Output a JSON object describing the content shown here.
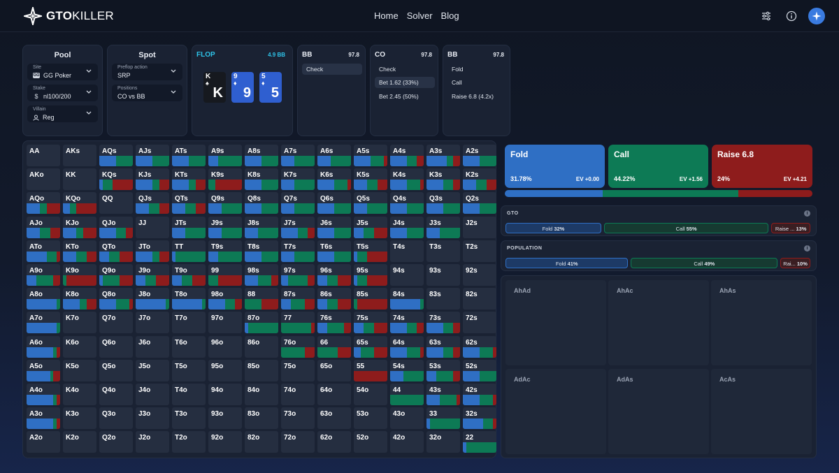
{
  "nav": {
    "brand_a": "GTO",
    "brand_b": "KILLER",
    "links": [
      "Home",
      "Solver",
      "Blog"
    ]
  },
  "pool": {
    "title": "Pool",
    "site_label": "Site",
    "site_value": "GG Poker",
    "stake_label": "Stake",
    "stake_value": "nl100/200",
    "villain_label": "Villain",
    "villain_value": "Reg"
  },
  "spot": {
    "title": "Spot",
    "preflop_label": "Preflop action",
    "preflop_value": "SRP",
    "positions_label": "Positions",
    "positions_value": "CO vs BB"
  },
  "board": {
    "street": "FLOP",
    "pot": "4.9 BB",
    "cards": [
      {
        "rank": "K",
        "suit": "♠",
        "color": "#16191f"
      },
      {
        "rank": "9",
        "suit": "♦",
        "color": "#2f5fd0"
      },
      {
        "rank": "5",
        "suit": "♦",
        "color": "#2f5fd0"
      }
    ]
  },
  "history": [
    {
      "pos": "BB",
      "stack": "97.8",
      "actions": [
        "Check"
      ],
      "selected": 0
    },
    {
      "pos": "CO",
      "stack": "97.8",
      "actions": [
        "Check",
        "Bet 1.62 (33%)",
        "Bet 2.45 (50%)"
      ],
      "selected": 1
    },
    {
      "pos": "BB",
      "stack": "97.8",
      "actions": [
        "Fold",
        "Call",
        "Raise 6.8 (4.2x)"
      ],
      "selected": -1
    }
  ],
  "summary": [
    {
      "name": "Fold",
      "pct": "31.78%",
      "ev": "EV +0.00",
      "color": "#2f6fc4",
      "frac": 0.3178
    },
    {
      "name": "Call",
      "pct": "44.22%",
      "ev": "EV +1.56",
      "color": "#0d7a55",
      "frac": 0.4422
    },
    {
      "name": "Raise 6.8",
      "pct": "24%",
      "ev": "EV +4.21",
      "color": "#8e1c1c",
      "frac": 0.24
    }
  ],
  "gto": {
    "title": "GTO",
    "info": "i",
    "items": [
      {
        "label": "Fold",
        "pct": "32%",
        "frac": 0.32
      },
      {
        "label": "Call",
        "pct": "55%",
        "frac": 0.55
      },
      {
        "label": "Raise ...",
        "pct": "13%",
        "frac": 0.13
      }
    ]
  },
  "population": {
    "title": "POPULATION",
    "info": "i",
    "items": [
      {
        "label": "Fold",
        "pct": "41%",
        "frac": 0.41
      },
      {
        "label": "Call",
        "pct": "49%",
        "frac": 0.49
      },
      {
        "label": "Rai...",
        "pct": "10%",
        "frac": 0.1
      }
    ]
  },
  "combos": [
    "AhAd",
    "AhAc",
    "AhAs",
    "AdAc",
    "AdAs",
    "AcAs"
  ],
  "colors": {
    "fold": "#2f6fc4",
    "call": "#0d7a55",
    "raise": "#8e1c1c"
  },
  "range": {
    "ranks": [
      "A",
      "K",
      "Q",
      "J",
      "T",
      "9",
      "8",
      "7",
      "6",
      "5",
      "4",
      "3",
      "2"
    ],
    "rows": [
      [
        [],
        [],
        [
          0.5,
          0.5,
          0
        ],
        [
          0.5,
          0.5,
          0
        ],
        [
          0.5,
          0.5,
          0
        ],
        [
          0.3,
          0.7,
          0
        ],
        [
          0.5,
          0.5,
          0
        ],
        [
          0.4,
          0.6,
          0
        ],
        [
          0.4,
          0.6,
          0
        ],
        [
          0.5,
          0.4,
          0.1
        ],
        [
          0.5,
          0.3,
          0.2
        ],
        [
          0.6,
          0.2,
          0.2
        ],
        [
          0.5,
          0.5,
          0
        ]
      ],
      [
        [],
        [],
        [
          0.1,
          0.3,
          0.6
        ],
        [
          0.5,
          0.2,
          0.3
        ],
        [
          0.5,
          0.2,
          0.3
        ],
        [
          0,
          0.2,
          0.8
        ],
        [
          0.5,
          0.5,
          0
        ],
        [
          0.4,
          0.6,
          0
        ],
        [
          0.5,
          0.4,
          0.1
        ],
        [
          0.4,
          0.3,
          0.3
        ],
        [
          0.5,
          0.4,
          0.1
        ],
        [
          0.5,
          0.3,
          0.2
        ],
        [
          0.4,
          0.3,
          0.3
        ]
      ],
      [
        [
          0.4,
          0.2,
          0.4
        ],
        [
          0.2,
          0.2,
          0.6
        ],
        [],
        [
          0.4,
          0.3,
          0.3
        ],
        [
          0.4,
          0.3,
          0.3
        ],
        [
          0.4,
          0.6,
          0
        ],
        [
          0.5,
          0.5,
          0
        ],
        [
          0.4,
          0.6,
          0
        ],
        [
          0.5,
          0.5,
          0
        ],
        [
          0.4,
          0.6,
          0
        ],
        [
          0.5,
          0.5,
          0
        ],
        [
          0.5,
          0.5,
          0
        ],
        [
          0.5,
          0.5,
          0
        ]
      ],
      [
        [
          0.4,
          0.3,
          0.3
        ],
        [
          0.4,
          0.2,
          0.4
        ],
        [
          0.5,
          0.3,
          0.2
        ],
        [],
        [
          0.4,
          0.6,
          0
        ],
        [
          0.4,
          0.6,
          0
        ],
        [
          0.4,
          0.6,
          0
        ],
        [
          0.5,
          0.3,
          0.2
        ],
        [
          0.5,
          0.5,
          0
        ],
        [
          0.3,
          0.3,
          0.4
        ],
        [
          0.5,
          0.5,
          0
        ],
        [
          0.4,
          0.6,
          0
        ],
        []
      ],
      [
        [
          0.6,
          0.3,
          0.1
        ],
        [
          0.4,
          0.3,
          0.3
        ],
        [
          0.3,
          0.3,
          0.4
        ],
        [
          0.5,
          0.2,
          0.3
        ],
        [
          0.1,
          0.9,
          0
        ],
        [
          0.3,
          0.7,
          0
        ],
        [
          0.5,
          0.5,
          0
        ],
        [
          0.4,
          0.6,
          0
        ],
        [
          0.5,
          0.5,
          0
        ],
        [
          0.1,
          0.3,
          0.6
        ],
        [],
        [],
        []
      ],
      [
        [
          0.3,
          0.5,
          0.2
        ],
        [
          0,
          0.1,
          0.9
        ],
        [
          0.1,
          0.5,
          0.4
        ],
        [
          0.3,
          0.3,
          0.4
        ],
        [
          0.3,
          0.3,
          0.4
        ],
        [
          0,
          0.3,
          0.7
        ],
        [
          0.4,
          0.4,
          0.2
        ],
        [
          0.2,
          0.6,
          0.2
        ],
        [
          0.3,
          0.3,
          0.4
        ],
        [
          0.1,
          0.3,
          0.6
        ],
        [],
        [],
        []
      ],
      [
        [
          0.9,
          0.1,
          0
        ],
        [
          0.5,
          0.2,
          0.3
        ],
        [
          0.5,
          0.4,
          0.1
        ],
        [
          0.9,
          0.1,
          0
        ],
        [
          0.9,
          0.1,
          0
        ],
        [
          0.5,
          0.3,
          0.2
        ],
        [
          0,
          0.5,
          0.5
        ],
        [
          0.3,
          0.4,
          0.3
        ],
        [
          0.3,
          0.3,
          0.4
        ],
        [
          0,
          0.1,
          0.9
        ],
        [
          0.9,
          0.1,
          0
        ],
        [],
        []
      ],
      [
        [
          0.9,
          0.1,
          0
        ],
        [],
        [],
        [],
        [],
        [],
        [
          0.1,
          0.9,
          0
        ],
        [
          0,
          0.9,
          0.1
        ],
        [
          0.3,
          0.5,
          0.2
        ],
        [
          0.3,
          0.3,
          0.4
        ],
        [
          0.5,
          0.3,
          0.2
        ],
        [
          0.5,
          0.3,
          0.2
        ],
        []
      ],
      [
        [
          0.8,
          0.1,
          0.1
        ],
        [],
        [],
        [],
        [],
        [],
        [],
        [
          0,
          0.7,
          0.3
        ],
        [
          0,
          0.6,
          0.4
        ],
        [
          0.2,
          0.4,
          0.4
        ],
        [
          0.5,
          0.4,
          0.1
        ],
        [
          0.5,
          0.3,
          0.2
        ],
        [
          0.5,
          0.4,
          0.1
        ]
      ],
      [
        [
          0.7,
          0.1,
          0.2
        ],
        [],
        [],
        [],
        [],
        [],
        [],
        [],
        [],
        [
          0,
          0,
          1
        ],
        [
          0.4,
          0.6,
          0
        ],
        [
          0.3,
          0.5,
          0.2
        ],
        [
          0.5,
          0.5,
          0
        ]
      ],
      [
        [
          0.8,
          0.1,
          0.1
        ],
        [],
        [],
        [],
        [],
        [],
        [],
        [],
        [],
        [],
        [
          0,
          1,
          0
        ],
        [
          0.4,
          0.5,
          0.1
        ],
        [
          0.5,
          0.4,
          0.1
        ]
      ],
      [
        [
          0.8,
          0.1,
          0.1
        ],
        [],
        [],
        [],
        [],
        [],
        [],
        [],
        [],
        [],
        [],
        [
          0.1,
          0.9,
          0
        ],
        [
          0.6,
          0.3,
          0.1
        ]
      ],
      [
        [],
        [],
        [],
        [],
        [],
        [],
        [],
        [],
        [],
        [],
        [],
        [],
        [
          0.1,
          0.9,
          0
        ]
      ]
    ]
  }
}
